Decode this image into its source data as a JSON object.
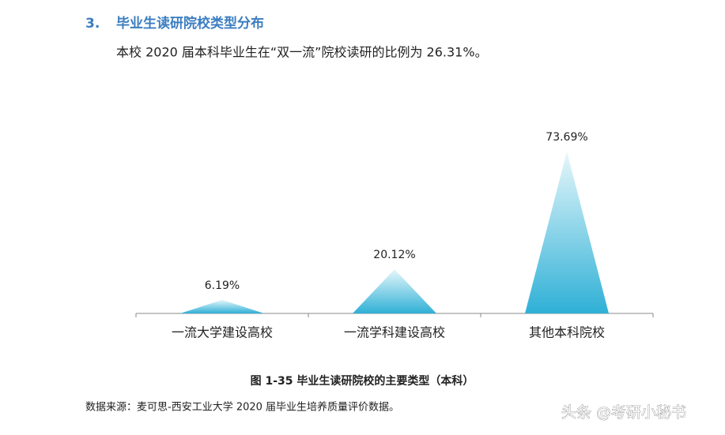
{
  "section": {
    "number": "3.",
    "title": "毕业生读研院校类型分布"
  },
  "paragraph": "本校 2020 届本科毕业生在“双一流”院校读研的比例为 26.31%。",
  "chart_data": {
    "type": "pyramid",
    "categories": [
      "一流大学建设高校",
      "一流学科建设高校",
      "其他本科院校"
    ],
    "values": [
      6.19,
      20.12,
      73.69
    ],
    "value_labels": [
      "6.19%",
      "20.12%",
      "73.69%"
    ],
    "color": "#3bb3d6"
  },
  "caption": "图 1-35 毕业生读研院校的主要类型（本科）",
  "source": "数据来源：麦可思-西安工业大学 2020 届毕业生培养质量评价数据。",
  "watermark": "头条 @考研小秘书"
}
